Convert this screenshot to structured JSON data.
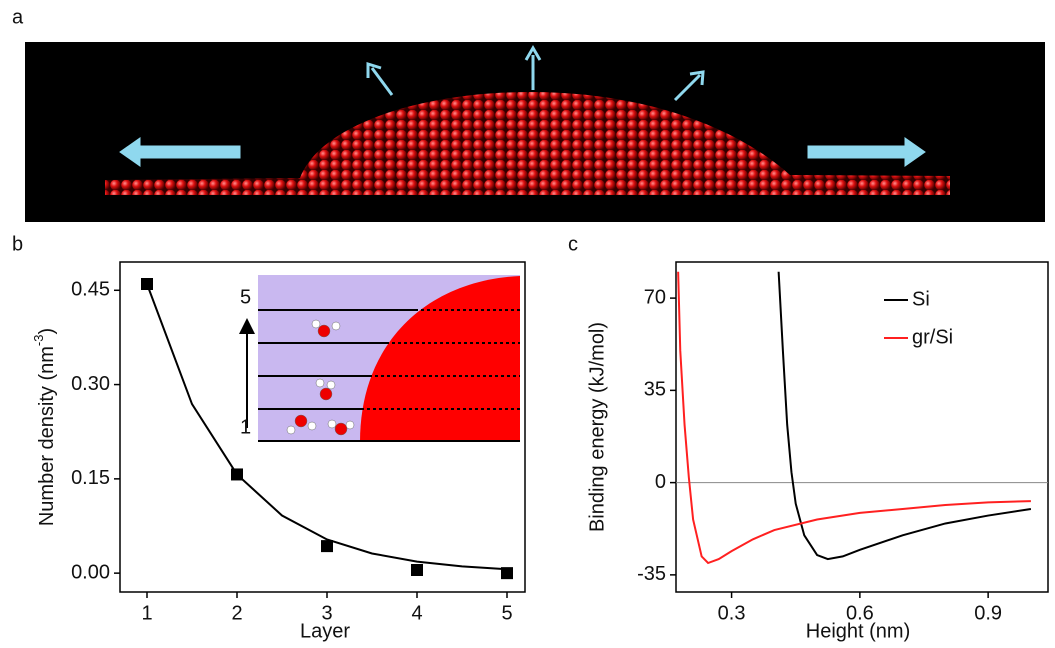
{
  "panel_labels": [
    "a",
    "b",
    "c"
  ],
  "inset_labels": [
    "5",
    "1"
  ],
  "chart_data": [
    {
      "type": "scatter",
      "color": "#000000",
      "xlabel": "Layer",
      "ylabel": "Number density (nm",
      "ylabel_sup": "-3",
      "ylabel_end": ")",
      "x": [
        1,
        2,
        3,
        4,
        5
      ],
      "values": [
        0.46,
        0.157,
        0.043,
        0.005,
        0.0
      ],
      "fit": {
        "x": [
          1,
          1.5,
          2,
          2.5,
          3,
          3.5,
          4,
          4.5,
          5
        ],
        "values": [
          0.46,
          0.269,
          0.157,
          0.0917,
          0.0536,
          0.0313,
          0.0183,
          0.0107,
          0.0062
        ]
      },
      "xlim": [
        0.7,
        5.2
      ],
      "ylim": [
        -0.03,
        0.495
      ],
      "xticks": [
        1,
        2,
        3,
        4,
        5
      ],
      "yticks": [
        {
          "value": 0,
          "label": "0.00"
        },
        {
          "value": 0.15,
          "label": "0.15"
        },
        {
          "value": 0.3,
          "label": "0.30"
        },
        {
          "value": 0.45,
          "label": "0.45"
        }
      ]
    },
    {
      "type": "line",
      "xlabel": "Height (nm)",
      "ylabel": "Binding energy (kJ/mol)",
      "xlim": [
        0.17,
        1.04
      ],
      "ylim": [
        -41.5,
        83.7
      ],
      "xticks": [
        0.3,
        0.6,
        0.9
      ],
      "yticks": [
        -35,
        0,
        35,
        70
      ],
      "zero_line": true,
      "series": [
        {
          "name": "Si",
          "color": "#000000",
          "x": [
            0.41,
            0.42,
            0.43,
            0.44,
            0.45,
            0.47,
            0.5,
            0.525,
            0.56,
            0.6,
            0.7,
            0.8,
            0.9,
            1.0
          ],
          "values": [
            80,
            50,
            22,
            4,
            -8,
            -20,
            -27.5,
            -29,
            -28,
            -25.5,
            -20,
            -15.5,
            -12.5,
            -10
          ]
        },
        {
          "name": "gr/Si",
          "color": "#ff2020",
          "x": [
            0.175,
            0.18,
            0.19,
            0.2,
            0.21,
            0.23,
            0.245,
            0.27,
            0.3,
            0.35,
            0.4,
            0.5,
            0.6,
            0.7,
            0.8,
            0.9,
            1.0
          ],
          "values": [
            80,
            50,
            22,
            2,
            -14,
            -28,
            -30.5,
            -29,
            -26,
            -21.5,
            -18,
            -14,
            -11.5,
            -10,
            -8.5,
            -7.5,
            -7
          ]
        }
      ]
    }
  ]
}
